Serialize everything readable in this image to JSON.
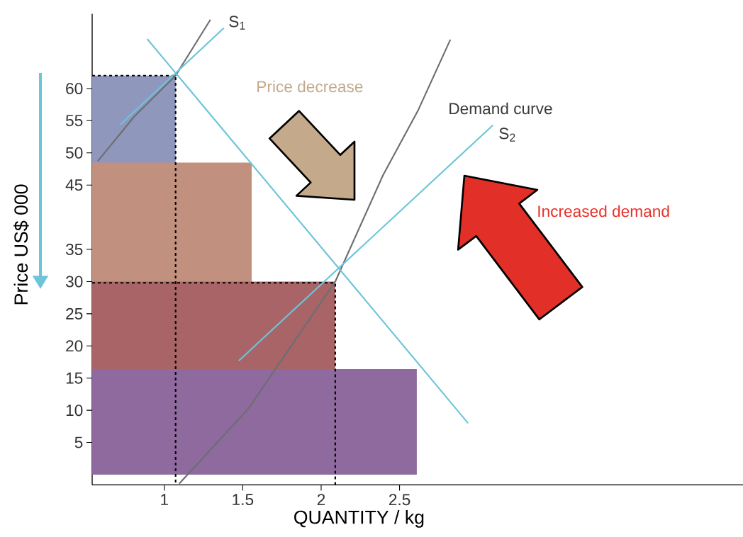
{
  "chart_data": {
    "type": "line",
    "xlabel": "QUANTITY / kg",
    "ylabel": "Price US$ 000",
    "xlim": [
      0.54,
      4.69
    ],
    "ylim": [
      -1.6,
      71.6
    ],
    "xticks": [
      1,
      1.5,
      2,
      2.5
    ],
    "yticks": [
      5,
      10,
      15,
      20,
      25,
      30,
      35,
      45,
      50,
      55,
      60
    ],
    "marker": "none",
    "series": [
      {
        "type": "area",
        "color": "#8f97bd",
        "x": [
          0.54,
          1.072
        ],
        "values": [
          62.0,
          62.0
        ]
      },
      {
        "type": "area",
        "color": "#c1907f",
        "x": [
          0.54,
          1.557
        ],
        "values": [
          48.5,
          48.5
        ]
      },
      {
        "type": "area",
        "color": "#a86466",
        "x": [
          0.54,
          2.09
        ],
        "values": [
          30.0,
          30.0
        ]
      },
      {
        "type": "area",
        "color": "#8e6a9f",
        "x": [
          0.54,
          2.61
        ],
        "values": [
          16.4,
          16.4
        ]
      },
      {
        "color": "#000000",
        "line_style": "dashed",
        "x": [
          0.54,
          1.072,
          1.072
        ],
        "values": [
          62.0,
          62.0,
          -1.6
        ]
      },
      {
        "color": "#000000",
        "line_style": "dashed",
        "x": [
          0.54,
          2.09,
          2.09
        ],
        "values": [
          29.8,
          29.8,
          -1.6
        ]
      },
      {
        "color": "#6d6e70",
        "x": [
          0.575,
          0.81,
          1.072,
          1.294
        ],
        "values": [
          48.7,
          55.7,
          62.0,
          70.7
        ]
      },
      {
        "color": "#6d6e70",
        "x": [
          1.095,
          1.534,
          2.09,
          2.394,
          2.62,
          2.824
        ],
        "values": [
          -1.4,
          10.2,
          30.0,
          46.5,
          56.7,
          67.6
        ]
      },
      {
        "color": "#6cc5d9",
        "x": [
          0.72,
          1.38
        ],
        "values": [
          54.4,
          69.4
        ]
      },
      {
        "color": "#6cc5d9",
        "x": [
          1.475,
          3.095
        ],
        "values": [
          17.7,
          54.3
        ]
      },
      {
        "color": "#6cc5d9",
        "x": [
          0.891,
          2.937
        ],
        "values": [
          67.7,
          8.0
        ]
      }
    ],
    "annotations": [
      "S$_{1}$",
      "S$_{2}$",
      "Demand curve",
      "Price decrease",
      "Increased demand"
    ]
  }
}
